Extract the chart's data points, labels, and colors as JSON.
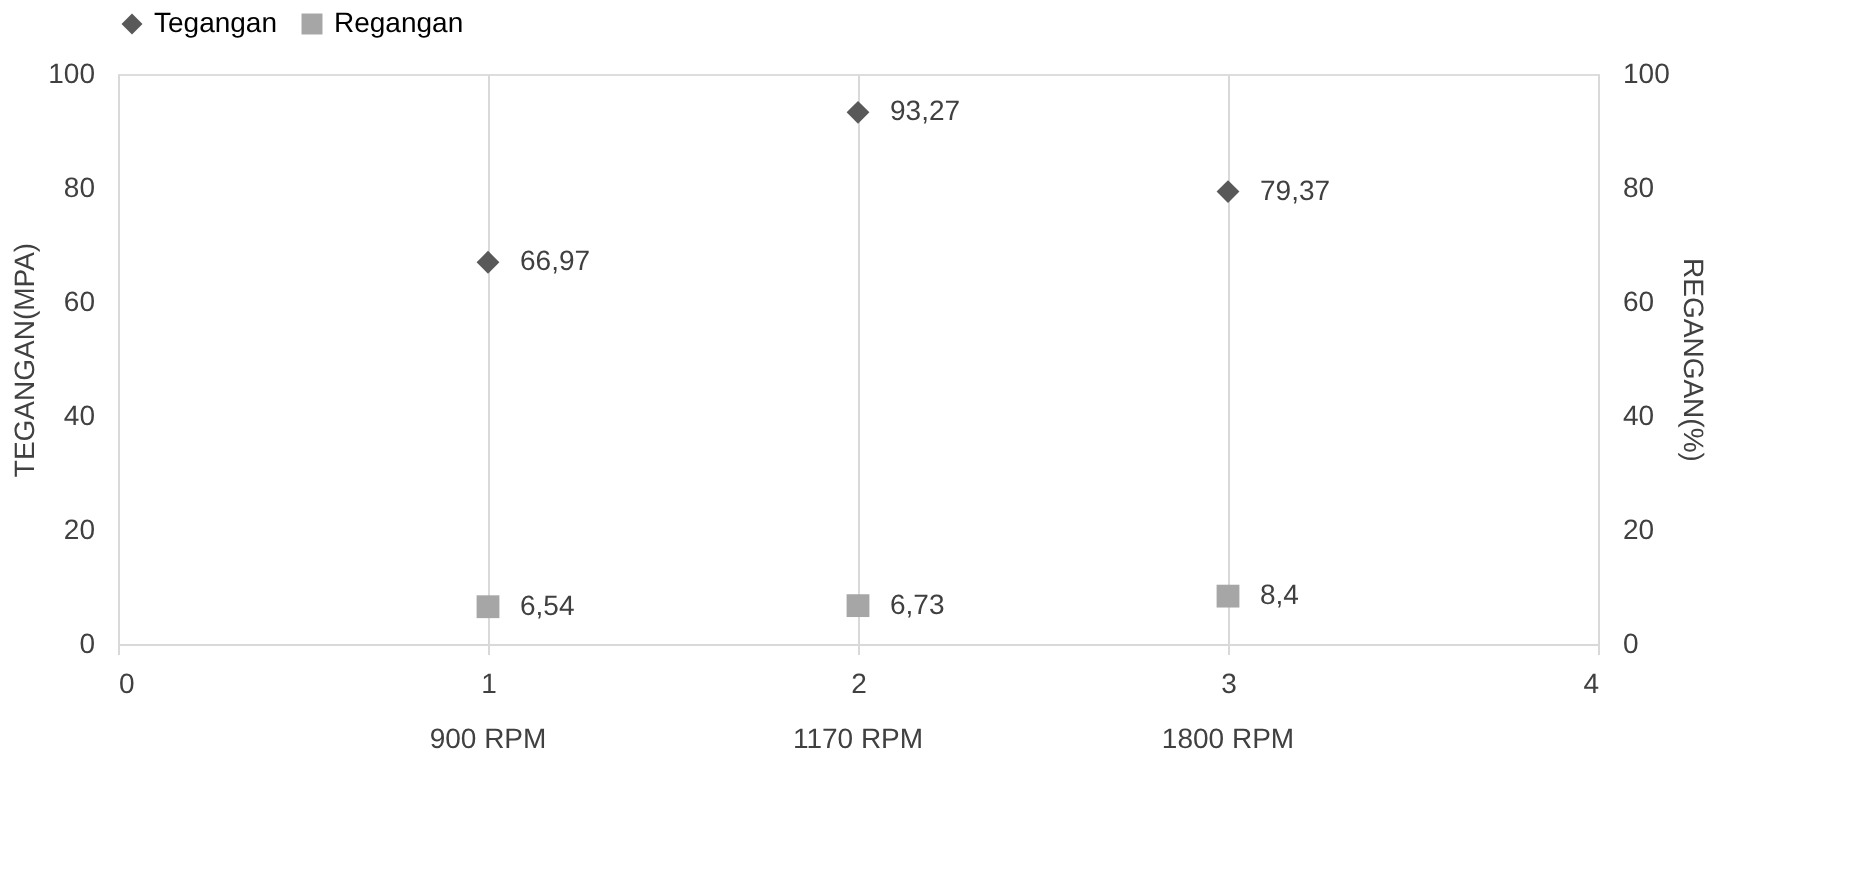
{
  "chart_data": {
    "type": "scatter",
    "ylabel": "TEGANGAN(MPA)",
    "y2label": "REGANGAN(%)",
    "x": [
      1,
      2,
      3
    ],
    "series": [
      {
        "name": "Tegangan",
        "color": "#595959",
        "marker": "diamond",
        "values": [
          66.97,
          93.27,
          79.37
        ],
        "value_labels": [
          "66,97",
          "93,27",
          "79,37"
        ]
      },
      {
        "name": "Regangan",
        "color": "#a6a6a6",
        "marker": "square",
        "axis": "y2",
        "values": [
          6.54,
          6.73,
          8.4
        ],
        "value_labels": [
          "6,54",
          "6,73",
          "8,4"
        ]
      }
    ],
    "xlim": [
      0,
      4
    ],
    "xticks": [
      0,
      1,
      2,
      3,
      4
    ],
    "ylim": [
      0,
      100
    ],
    "yticks": [
      0,
      20,
      40,
      60,
      80,
      100
    ],
    "y2lim": [
      0,
      100
    ],
    "y2ticks": [
      0,
      20,
      40,
      60,
      80,
      100
    ],
    "grid": "x",
    "legend": "top",
    "annotations": [
      "900 RPM",
      "1170 RPM",
      "1800 RPM"
    ]
  }
}
